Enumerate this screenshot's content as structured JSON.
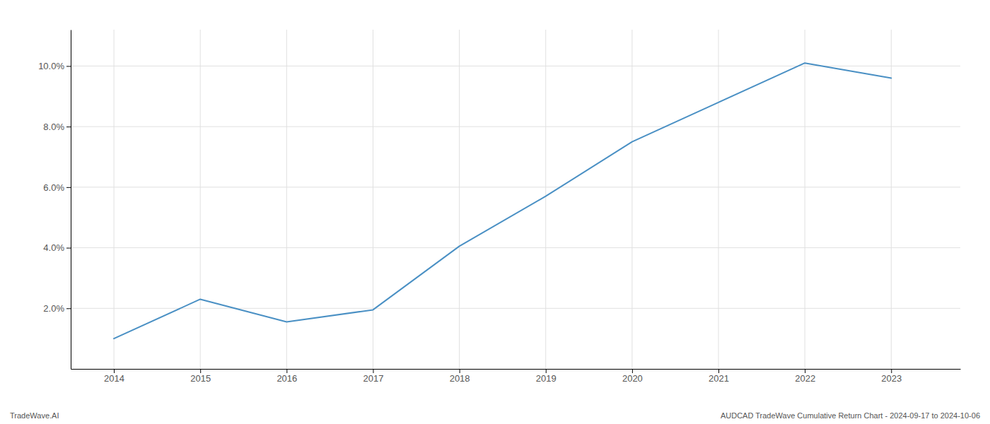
{
  "chart_data": {
    "type": "line",
    "x": [
      2014,
      2015,
      2016,
      2017,
      2018,
      2019,
      2020,
      2021,
      2022,
      2023
    ],
    "values": [
      1.0,
      2.3,
      1.55,
      1.95,
      4.05,
      5.7,
      7.5,
      8.8,
      10.1,
      9.6
    ],
    "color": "#4a90c4",
    "xlim": [
      2013.5,
      2023.8
    ],
    "ylim": [
      0.0,
      11.2
    ],
    "xticks": [
      2014,
      2015,
      2016,
      2017,
      2018,
      2019,
      2020,
      2021,
      2022,
      2023
    ],
    "yticks": [
      {
        "value": 2.0,
        "label": "2.0%"
      },
      {
        "value": 4.0,
        "label": "4.0%"
      },
      {
        "value": 6.0,
        "label": "6.0%"
      },
      {
        "value": 8.0,
        "label": "8.0%"
      },
      {
        "value": 10.0,
        "label": "10.0%"
      }
    ],
    "grid": true,
    "annotations": [
      "TradeWave.AI",
      "AUDCAD TradeWave Cumulative Return Chart - 2024-09-17 to 2024-10-06"
    ]
  }
}
